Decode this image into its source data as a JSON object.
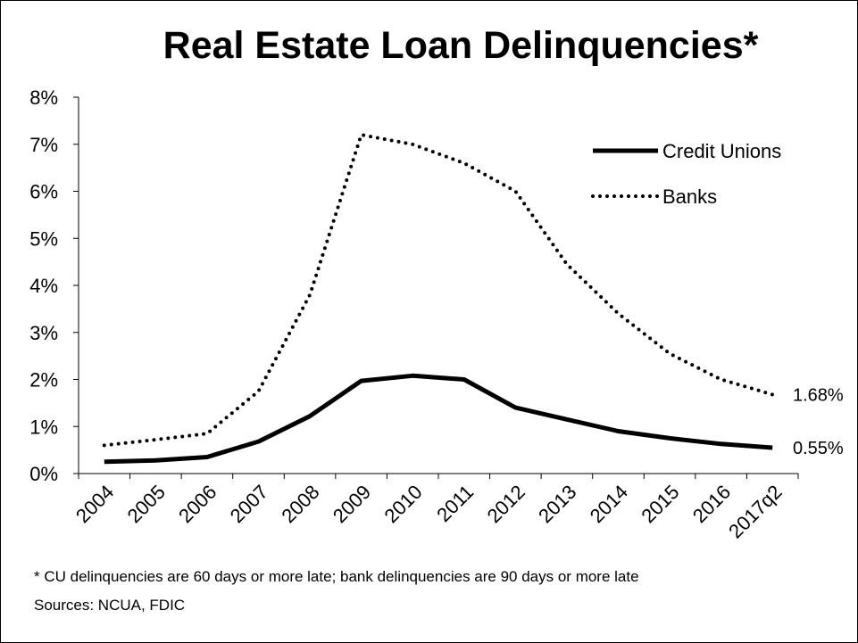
{
  "chart_data": {
    "type": "line",
    "title": "Real Estate Loan Delinquencies*",
    "categories": [
      "2004",
      "2005",
      "2006",
      "2007",
      "2008",
      "2009",
      "2010",
      "2011",
      "2012",
      "2013",
      "2014",
      "2015",
      "2016",
      "2017q2"
    ],
    "ylim": [
      0,
      8
    ],
    "y_ticks": [
      "0%",
      "1%",
      "2%",
      "3%",
      "4%",
      "5%",
      "6%",
      "7%",
      "8%"
    ],
    "grid": false,
    "legend_position": "top-right",
    "series": [
      {
        "name": "Credit Unions",
        "style": "solid",
        "color": "#000000",
        "values": [
          0.25,
          0.28,
          0.35,
          0.68,
          1.22,
          1.97,
          2.08,
          2.0,
          1.4,
          1.15,
          0.9,
          0.75,
          0.63,
          0.55
        ],
        "end_label": "0.55%"
      },
      {
        "name": "Banks",
        "style": "dotted",
        "color": "#000000",
        "values": [
          0.6,
          0.72,
          0.85,
          1.75,
          3.8,
          7.2,
          7.0,
          6.6,
          6.0,
          4.45,
          3.4,
          2.55,
          2.0,
          1.68
        ],
        "end_label": "1.68%"
      }
    ]
  },
  "footnote": "* CU delinquencies are 60 days or more late; bank delinquencies are 90 days or more late",
  "source": "Sources: NCUA, FDIC"
}
